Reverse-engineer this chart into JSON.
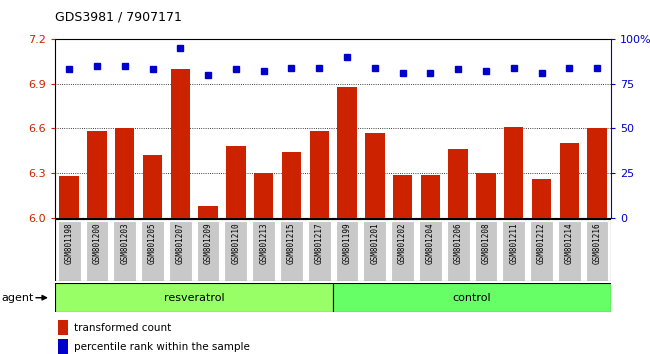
{
  "title": "GDS3981 / 7907171",
  "samples": [
    "GSM801198",
    "GSM801200",
    "GSM801203",
    "GSM801205",
    "GSM801207",
    "GSM801209",
    "GSM801210",
    "GSM801213",
    "GSM801215",
    "GSM801217",
    "GSM801199",
    "GSM801201",
    "GSM801202",
    "GSM801204",
    "GSM801206",
    "GSM801208",
    "GSM801211",
    "GSM801212",
    "GSM801214",
    "GSM801216"
  ],
  "bar_values": [
    6.28,
    6.58,
    6.6,
    6.42,
    7.0,
    6.08,
    6.48,
    6.3,
    6.44,
    6.58,
    6.88,
    6.57,
    6.29,
    6.29,
    6.46,
    6.3,
    6.61,
    6.26,
    6.5,
    6.6
  ],
  "dot_values": [
    83,
    85,
    85,
    83,
    95,
    80,
    83,
    82,
    84,
    84,
    90,
    84,
    81,
    81,
    83,
    82,
    84,
    81,
    84,
    84
  ],
  "resveratrol_count": 10,
  "control_count": 10,
  "ylim_left": [
    6.0,
    7.2
  ],
  "ylim_right": [
    0,
    100
  ],
  "yticks_left": [
    6.0,
    6.3,
    6.6,
    6.9,
    7.2
  ],
  "yticks_right": [
    0,
    25,
    50,
    75,
    100
  ],
  "bar_color": "#CC2200",
  "dot_color": "#0000CC",
  "resveratrol_color": "#99FF66",
  "control_color": "#66FF66",
  "xticklabel_bg": "#C8C8C8",
  "agent_label": "agent",
  "resveratrol_label": "resveratrol",
  "control_label": "control",
  "legend_bar_label": "transformed count",
  "legend_dot_label": "percentile rank within the sample",
  "grid_values": [
    6.3,
    6.6,
    6.9
  ],
  "bar_width": 0.7
}
